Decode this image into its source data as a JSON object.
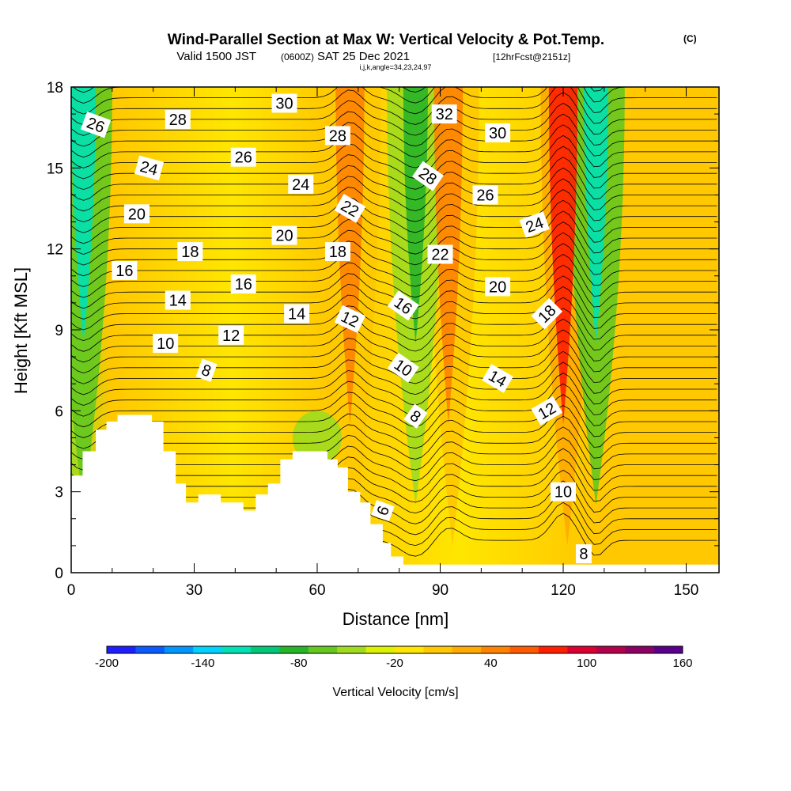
{
  "header": {
    "title": "Wind-Parallel Section at Max W: Vertical Velocity & Pot.Temp.",
    "copyright": "(C)",
    "valid_prefix": "Valid 1500 JST",
    "valid_z": "(0600Z)",
    "valid_date": "SAT 25 Dec 2021",
    "forecast": "[12hrFcst@2151z]",
    "indices": "i,j,k,angle=34,23,24,97"
  },
  "chart_data": {
    "type": "heatmap",
    "xlabel": "Distance [nm]",
    "ylabel": "Height [Kft MSL]",
    "xlim": [
      0,
      158
    ],
    "ylim": [
      0,
      18
    ],
    "x_ticks": [
      0,
      30,
      60,
      90,
      120,
      150
    ],
    "y_ticks": [
      0,
      3,
      6,
      9,
      12,
      15,
      18
    ],
    "colorbar": {
      "label": "Vertical Velocity [cm/s]",
      "min": -200,
      "max": 160,
      "step": 20,
      "tick_labels": [
        -200,
        -140,
        -80,
        -20,
        40,
        100,
        160
      ],
      "colors": [
        "#1e1eff",
        "#0a5aff",
        "#0096ff",
        "#00d2ff",
        "#00e1b4",
        "#00c878",
        "#28b428",
        "#64c81e",
        "#a0dc1e",
        "#dcf000",
        "#ffe600",
        "#ffc800",
        "#ffaa00",
        "#ff8200",
        "#ff5a00",
        "#ff1e00",
        "#dc0032",
        "#b4004b",
        "#8c0064",
        "#5a008c"
      ]
    },
    "updraft_cores": [
      {
        "x": 68,
        "w_cm_s": 60
      },
      {
        "x": 92,
        "w_cm_s": 60
      },
      {
        "x": 120,
        "w_cm_s": 100
      }
    ],
    "downdraft_cores": [
      {
        "x": 3,
        "w_cm_s": -120
      },
      {
        "x": 84,
        "w_cm_s": -80
      },
      {
        "x": 128,
        "w_cm_s": -120
      }
    ],
    "terrain_top_kft": [
      [
        0,
        3.6
      ],
      [
        2.8,
        3.6
      ],
      [
        2.8,
        4.5
      ],
      [
        6,
        4.5
      ],
      [
        6,
        5.3
      ],
      [
        8.6,
        5.3
      ],
      [
        8.6,
        5.6
      ],
      [
        11.3,
        5.6
      ],
      [
        11.3,
        5.85
      ],
      [
        19.7,
        5.85
      ],
      [
        19.7,
        5.6
      ],
      [
        22.5,
        5.6
      ],
      [
        22.5,
        4.5
      ],
      [
        25.5,
        4.5
      ],
      [
        25.5,
        3.3
      ],
      [
        28,
        3.3
      ],
      [
        28,
        2.6
      ],
      [
        31,
        2.6
      ],
      [
        31,
        2.9
      ],
      [
        36.5,
        2.9
      ],
      [
        36.5,
        2.6
      ],
      [
        42,
        2.6
      ],
      [
        42,
        2.3
      ],
      [
        45,
        2.3
      ],
      [
        45,
        2.9
      ],
      [
        48,
        2.9
      ],
      [
        48,
        3.3
      ],
      [
        51,
        3.3
      ],
      [
        51,
        4.2
      ],
      [
        54,
        4.2
      ],
      [
        54,
        4.5
      ],
      [
        62.5,
        4.5
      ],
      [
        62.5,
        4.2
      ],
      [
        65,
        4.2
      ],
      [
        65,
        3.9
      ],
      [
        67.5,
        3.9
      ],
      [
        67.5,
        3.0
      ],
      [
        70.5,
        3.0
      ],
      [
        70.5,
        2.6
      ],
      [
        73,
        2.6
      ],
      [
        73,
        1.8
      ],
      [
        76,
        1.8
      ],
      [
        76,
        1.1
      ],
      [
        78,
        1.1
      ],
      [
        78,
        0.6
      ],
      [
        81,
        0.6
      ],
      [
        81,
        0.3
      ],
      [
        158,
        0.3
      ]
    ],
    "isentrope_labels": [
      {
        "text": "26",
        "x": 6,
        "y": 16.6,
        "angle": 20
      },
      {
        "text": "28",
        "x": 26,
        "y": 16.8,
        "angle": 0
      },
      {
        "text": "30",
        "x": 52,
        "y": 17.4,
        "angle": 0
      },
      {
        "text": "28",
        "x": 65,
        "y": 16.2,
        "angle": 0
      },
      {
        "text": "32",
        "x": 91,
        "y": 17.0,
        "angle": 0
      },
      {
        "text": "30",
        "x": 104,
        "y": 16.3,
        "angle": 0
      },
      {
        "text": "24",
        "x": 19,
        "y": 15.0,
        "angle": 15
      },
      {
        "text": "26",
        "x": 42,
        "y": 15.4,
        "angle": 0
      },
      {
        "text": "24",
        "x": 56,
        "y": 14.4,
        "angle": 0
      },
      {
        "text": "28",
        "x": 87,
        "y": 14.7,
        "angle": 35
      },
      {
        "text": "26",
        "x": 101,
        "y": 14.0,
        "angle": 0
      },
      {
        "text": "22",
        "x": 68,
        "y": 13.5,
        "angle": 30
      },
      {
        "text": "20",
        "x": 16,
        "y": 13.3,
        "angle": 0
      },
      {
        "text": "24",
        "x": 113,
        "y": 12.9,
        "angle": -20
      },
      {
        "text": "20",
        "x": 52,
        "y": 12.5,
        "angle": 0
      },
      {
        "text": "18",
        "x": 29,
        "y": 11.9,
        "angle": 0
      },
      {
        "text": "18",
        "x": 65,
        "y": 11.9,
        "angle": 0
      },
      {
        "text": "22",
        "x": 90,
        "y": 11.8,
        "angle": 0
      },
      {
        "text": "16",
        "x": 13,
        "y": 11.2,
        "angle": 0
      },
      {
        "text": "16",
        "x": 42,
        "y": 10.7,
        "angle": 0
      },
      {
        "text": "20",
        "x": 104,
        "y": 10.6,
        "angle": 0
      },
      {
        "text": "14",
        "x": 26,
        "y": 10.1,
        "angle": 0
      },
      {
        "text": "16",
        "x": 81,
        "y": 9.9,
        "angle": 35
      },
      {
        "text": "18",
        "x": 116,
        "y": 9.6,
        "angle": -45
      },
      {
        "text": "14",
        "x": 55,
        "y": 9.6,
        "angle": 0
      },
      {
        "text": "12",
        "x": 68,
        "y": 9.4,
        "angle": 25
      },
      {
        "text": "12",
        "x": 39,
        "y": 8.8,
        "angle": 0
      },
      {
        "text": "10",
        "x": 23,
        "y": 8.5,
        "angle": 0
      },
      {
        "text": "10",
        "x": 81,
        "y": 7.6,
        "angle": 35
      },
      {
        "text": "8",
        "x": 33,
        "y": 7.5,
        "angle": 20
      },
      {
        "text": "14",
        "x": 104,
        "y": 7.2,
        "angle": 30
      },
      {
        "text": "12",
        "x": 116,
        "y": 6.0,
        "angle": -30
      },
      {
        "text": "8",
        "x": 84,
        "y": 5.8,
        "angle": 35
      },
      {
        "text": "10",
        "x": 120,
        "y": 3.0,
        "angle": 0
      },
      {
        "text": "6",
        "x": 76,
        "y": 2.3,
        "angle": -70
      },
      {
        "text": "8",
        "x": 125,
        "y": 0.7,
        "angle": 0
      }
    ]
  }
}
